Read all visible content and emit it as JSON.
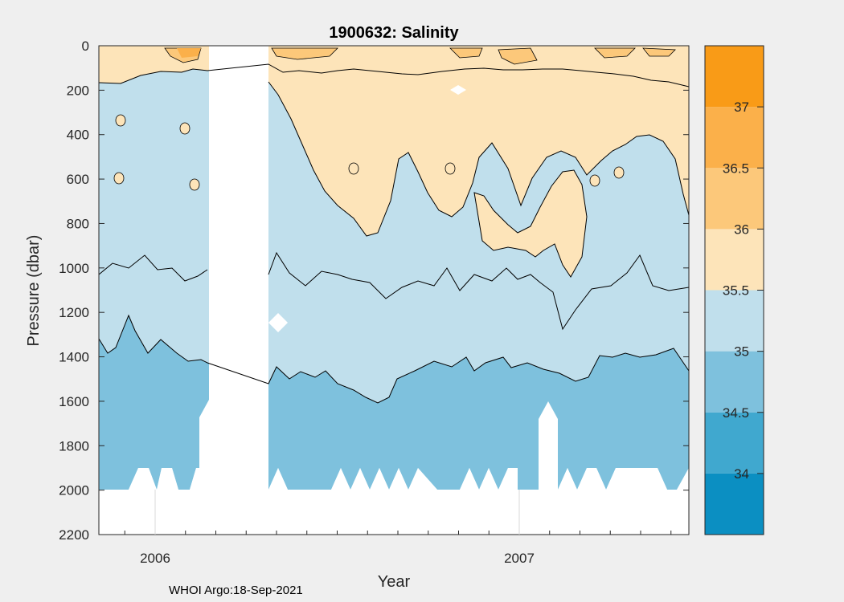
{
  "chart_data": {
    "type": "heatmap",
    "subtype": "filled-contour",
    "title": "1900632:  Salinity",
    "xlabel": "Year",
    "ylabel": "Pressure (dbar)",
    "x_tick_labels": [
      "2006",
      "2007"
    ],
    "y_ticks": [
      0,
      200,
      400,
      600,
      800,
      1000,
      1200,
      1400,
      1600,
      1800,
      2000,
      2200
    ],
    "ylim": [
      0,
      2200
    ],
    "y_reversed": true,
    "max_pressure_sampled": 2000,
    "colorbar": {
      "levels": [
        33.5,
        34,
        34.5,
        35,
        35.5,
        36,
        36.5,
        37,
        37.5
      ],
      "tick_labels": [
        "34",
        "34.5",
        "35",
        "35.5",
        "36",
        "36.5",
        "37"
      ],
      "colors": [
        "#0b8fc2",
        "#40a8cf",
        "#7ec1dd",
        "#c0dfec",
        "#fde4b9",
        "#fcc87a",
        "#fbb04a",
        "#f99b17"
      ]
    },
    "salinity_layers": [
      {
        "range": "35.5-36",
        "pressure_from": 0,
        "pressure_to": 180,
        "note": "near-surface layer, patches above 36 at surface"
      },
      {
        "range": "35-35.5",
        "pressure_from": 180,
        "pressure_to": 1420
      },
      {
        "range": "34.5-35",
        "pressure_from": 1420,
        "pressure_to": 2000
      }
    ],
    "data_gap": "no profiles shortly after start of 2006"
  },
  "footer": "WHOI Argo:18-Sep-2021"
}
